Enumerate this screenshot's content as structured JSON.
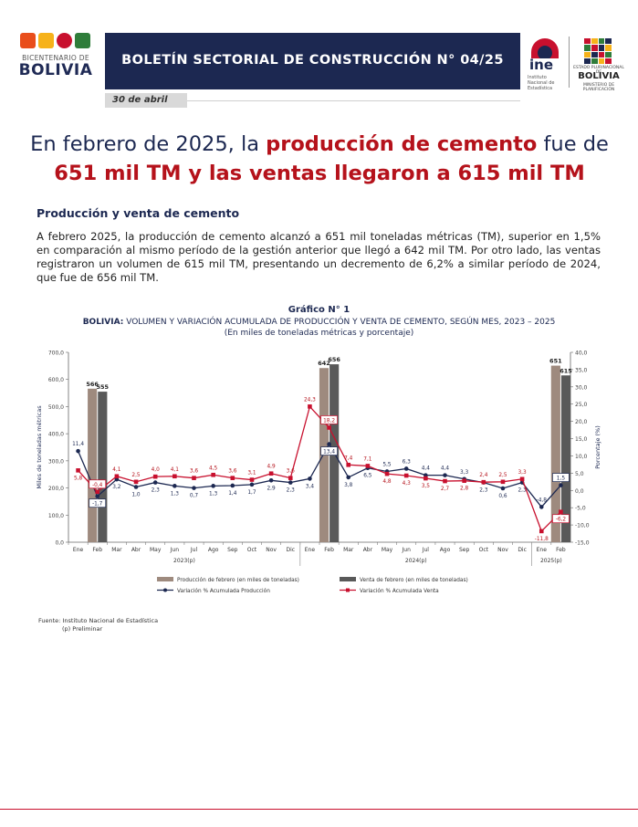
{
  "header": {
    "bicentenario_small": "BICENTENARIO DE",
    "bicentenario_big": "BOLIVIA",
    "title": "BOLETÍN SECTORIAL DE CONSTRUCCIÓN N° 04/25",
    "ine_logo_text": "ine",
    "ine_logo_sub": "Instituto Nacional de Estadística",
    "bolivia_logo_text": "BOLIVIA",
    "bolivia_logo_sub1": "ESTADO PLURINACIONAL DE",
    "bolivia_logo_sub2": "MINISTERIO DE PLANIFICACIÓN",
    "date": "30 de abril"
  },
  "headline": {
    "part1": "En febrero de 2025, la ",
    "part2": "producción de cemento",
    "part3": " fue de",
    "part4": "651 mil TM y las ventas llegaron a 615 mil TM"
  },
  "section": {
    "title": "Producción y venta de cemento",
    "body": "A febrero 2025, la producción de cemento alcanzó a 651 mil toneladas métricas (TM), superior en 1,5% en comparación al mismo período de la gestión anterior que llegó a 642 mil TM. Por otro lado, las ventas registraron un volumen de 615 mil TM, presentando un decremento de 6,2% a similar período de 2024, que fue de 656 mil TM."
  },
  "chart_titles": {
    "number": "Gráfico N° 1",
    "subtitle_bold": "BOLIVIA:",
    "subtitle": " VOLUMEN Y VARIACIÓN ACUMULADA DE PRODUCCIÓN Y VENTA DE CEMENTO, SEGÚN MES, 2023 – 2025",
    "units": "(En miles de toneladas métricas y porcentaje)"
  },
  "chart_data": {
    "type": "bar+line",
    "x": [
      "Ene",
      "Feb",
      "Mar",
      "Abr",
      "May",
      "Jun",
      "Jul",
      "Ago",
      "Sep",
      "Oct",
      "Nov",
      "Dic",
      "Ene",
      "Feb",
      "Mar",
      "Abr",
      "May",
      "Jun",
      "Jul",
      "Ago",
      "Sep",
      "Oct",
      "Nov",
      "Dic",
      "Ene",
      "Feb"
    ],
    "year_labels": [
      {
        "label": "2023(p)",
        "from": 0,
        "to": 11
      },
      {
        "label": "2024(p)",
        "from": 12,
        "to": 23
      },
      {
        "label": "2025(p)",
        "from": 24,
        "to": 25
      }
    ],
    "bars": [
      {
        "index": 1,
        "production": 566,
        "sales": 555
      },
      {
        "index": 13,
        "production": 642,
        "sales": 656
      },
      {
        "index": 25,
        "production": 651,
        "sales": 615
      }
    ],
    "series": [
      {
        "name": "Variación % Acumulada Producción",
        "color": "#1c2851",
        "values": [
          11.4,
          -1.7,
          3.2,
          1.0,
          2.3,
          1.3,
          0.7,
          1.3,
          1.4,
          1.7,
          2.9,
          2.3,
          3.4,
          13.4,
          3.8,
          6.5,
          5.5,
          6.3,
          4.4,
          4.4,
          3.3,
          2.3,
          0.6,
          2.3,
          -4.8,
          1.5
        ]
      },
      {
        "name": "Variación % Acumulada Venta",
        "color": "#c8102e",
        "values": [
          5.8,
          -0.4,
          4.1,
          2.5,
          4.0,
          4.1,
          3.6,
          4.5,
          3.6,
          3.1,
          4.9,
          3.6,
          24.3,
          18.2,
          7.4,
          7.1,
          4.8,
          4.3,
          3.5,
          2.7,
          2.8,
          2.4,
          2.5,
          3.3,
          -11.8,
          -6.2
        ]
      }
    ],
    "left_axis": {
      "label": "Miles de toneladas métricas",
      "range": [
        0,
        700
      ],
      "ticks": [
        "0,0",
        "100,0",
        "200,0",
        "300,0",
        "400,0",
        "500,0",
        "600,0",
        "700,0"
      ]
    },
    "right_axis": {
      "label": "Porcentaje (%)",
      "range": [
        -15,
        40
      ],
      "ticks": [
        "-15,0",
        "-10,0",
        "-5,0",
        "0,0",
        "5,0",
        "10,0",
        "15,0",
        "20,0",
        "25,0",
        "30,0",
        "35,0",
        "40,0"
      ]
    },
    "value_labels": {
      "production": [
        "11,4",
        "-1,7",
        "3,2",
        "1,0",
        "2,3",
        "1,3",
        "0,7",
        "1,3",
        "1,4",
        "1,7",
        "2,9",
        "2,3",
        "3,4",
        "13,4",
        "3,8",
        "6,5",
        "5,5",
        "6,3",
        "4,4",
        "4,4",
        "3,3",
        "2,3",
        "0,6",
        "2,3",
        "-4,8",
        "1,5"
      ],
      "sales": [
        "5,8",
        "-0,4",
        "4,1",
        "2,5",
        "4,0",
        "4,1",
        "3,6",
        "4,5",
        "3,6",
        "3,1",
        "4,9",
        "3,6",
        "24,3",
        "18,2",
        "7,4",
        "7,1",
        "4,8",
        "4,3",
        "3,5",
        "2,7",
        "2,8",
        "2,4",
        "2,5",
        "3,3",
        "-11,8",
        "-6,2"
      ]
    },
    "legend": [
      "Producción de febrero (en miles de toneladas)",
      "Venta de febrero (en miles de toneladas)",
      "Variación % Acumulada Producción",
      "Variación % Acumulada Venta"
    ],
    "legend_position": "bottom",
    "bar_colors": {
      "production": "#9e8a7e",
      "sales": "#595959"
    }
  },
  "footer": {
    "source": "Fuente: Instituto Nacional de Estadística",
    "note": "(p) Preliminar"
  }
}
